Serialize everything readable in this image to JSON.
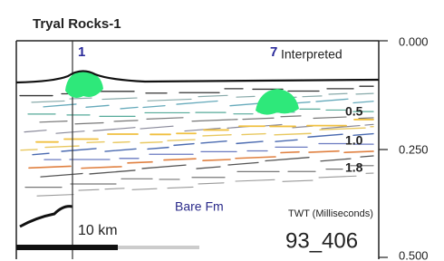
{
  "header": {
    "title": "Tryal Rocks-1"
  },
  "wells": [
    {
      "label": "1"
    },
    {
      "label": "7"
    }
  ],
  "panel": {
    "label": "Interpreted"
  },
  "axis": {
    "label": "TWT (Milliseconds)",
    "ticks": [
      "0.000",
      "0.250",
      "0.500"
    ]
  },
  "horizon_labels": [
    "0.5",
    "1.0",
    "1.8"
  ],
  "formation": "Bare Fm",
  "scale": "10 km",
  "survey": "93_406"
}
